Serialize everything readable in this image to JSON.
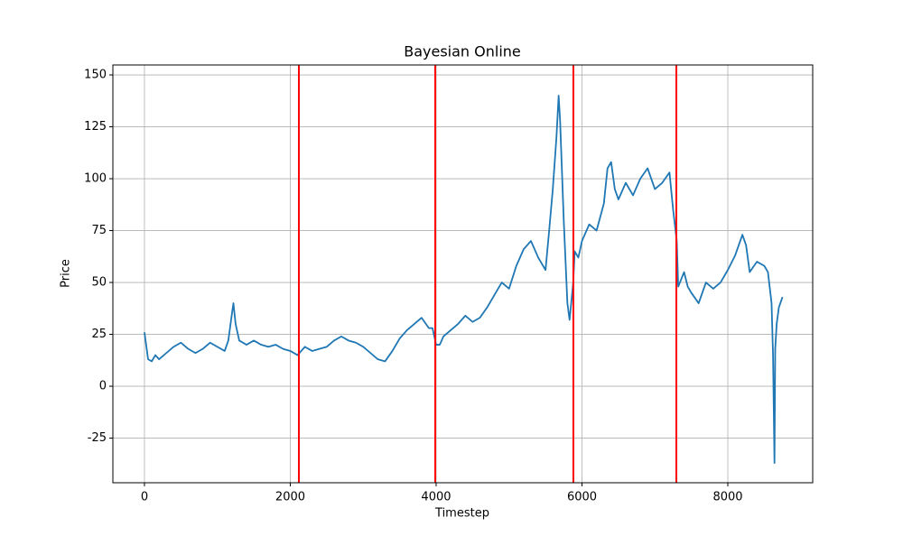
{
  "chart_data": {
    "type": "line",
    "title": "Bayesian Online",
    "xlabel": "Timestep",
    "ylabel": "Price",
    "x": [
      0,
      50,
      100,
      150,
      200,
      300,
      400,
      500,
      600,
      700,
      800,
      900,
      1000,
      1100,
      1150,
      1200,
      1220,
      1250,
      1300,
      1400,
      1500,
      1600,
      1700,
      1800,
      1900,
      2000,
      2100,
      2200,
      2300,
      2400,
      2500,
      2600,
      2700,
      2800,
      2900,
      3000,
      3100,
      3200,
      3300,
      3400,
      3500,
      3600,
      3700,
      3800,
      3900,
      3950,
      4000,
      4050,
      4100,
      4200,
      4300,
      4400,
      4500,
      4600,
      4700,
      4800,
      4900,
      5000,
      5100,
      5200,
      5300,
      5400,
      5500,
      5550,
      5600,
      5650,
      5680,
      5700,
      5750,
      5800,
      5830,
      5880,
      5900,
      5950,
      6000,
      6100,
      6200,
      6300,
      6350,
      6400,
      6450,
      6500,
      6600,
      6700,
      6800,
      6900,
      7000,
      7100,
      7200,
      7250,
      7300,
      7320,
      7400,
      7450,
      7500,
      7600,
      7700,
      7800,
      7900,
      8000,
      8100,
      8200,
      8250,
      8300,
      8400,
      8500,
      8550,
      8600,
      8620,
      8640,
      8650,
      8670,
      8700,
      8750
    ],
    "y": [
      26,
      13,
      12,
      15,
      13,
      16,
      19,
      21,
      18,
      16,
      18,
      21,
      19,
      17,
      22,
      35,
      40,
      30,
      22,
      20,
      22,
      20,
      19,
      20,
      18,
      17,
      15,
      19,
      17,
      18,
      19,
      22,
      24,
      22,
      21,
      19,
      16,
      13,
      12,
      17,
      23,
      27,
      30,
      33,
      28,
      28,
      20,
      20,
      24,
      27,
      30,
      34,
      31,
      33,
      38,
      44,
      50,
      47,
      58,
      66,
      70,
      62,
      56,
      75,
      95,
      120,
      140,
      128,
      80,
      40,
      32,
      50,
      65,
      62,
      70,
      78,
      75,
      88,
      105,
      108,
      95,
      90,
      98,
      92,
      100,
      105,
      95,
      98,
      103,
      85,
      70,
      48,
      55,
      48,
      45,
      40,
      50,
      47,
      50,
      56,
      63,
      73,
      68,
      55,
      60,
      58,
      55,
      40,
      15,
      -37,
      18,
      30,
      38,
      43
    ],
    "color": "#1f77b4",
    "vlines": [
      2118,
      3988,
      5882,
      7294
    ],
    "vline_color": "#ff0000",
    "xlim": [
      -433,
      9164
    ],
    "ylim": [
      -46.5,
      154.8
    ],
    "xticks": [
      0,
      2000,
      4000,
      6000,
      8000
    ],
    "yticks": [
      -25,
      0,
      25,
      50,
      75,
      100,
      125,
      150
    ],
    "grid": true
  }
}
